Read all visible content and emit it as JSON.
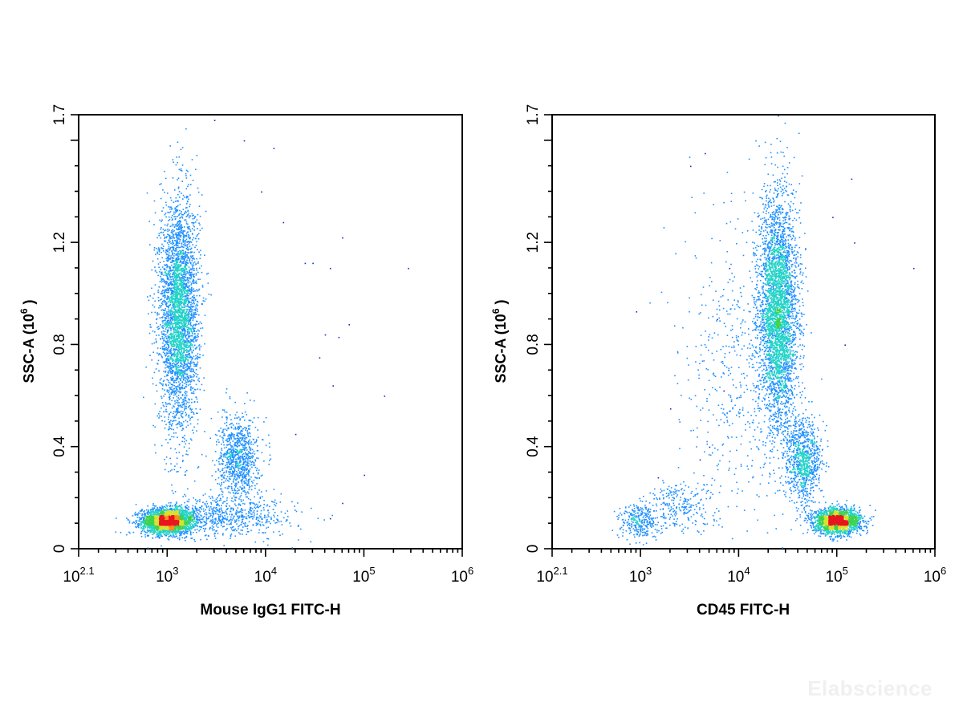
{
  "chart_data": [
    {
      "type": "scatter",
      "subtype": "flow-cytometry-density-dot-plot",
      "xlabel": "Mouse IgG1 FITC-H",
      "ylabel": "SSC-A (10^6 )",
      "ylabel_base": "SSC-A (10",
      "ylabel_exp": "6",
      "ylabel_close": " )",
      "x_scale": "log",
      "xlim": [
        125.9,
        1000000
      ],
      "ylim": [
        0,
        1.7
      ],
      "x_ticks": [
        {
          "value": 125.9,
          "base": "10",
          "exp": "2.1"
        },
        {
          "value": 1000,
          "base": "10",
          "exp": "3"
        },
        {
          "value": 10000,
          "base": "10",
          "exp": "4"
        },
        {
          "value": 100000,
          "base": "10",
          "exp": "5"
        },
        {
          "value": 1000000,
          "base": "10",
          "exp": "6"
        }
      ],
      "y_ticks": [
        {
          "value": 0,
          "label": "0"
        },
        {
          "value": 0.4,
          "label": "0.4"
        },
        {
          "value": 0.8,
          "label": "0.8"
        },
        {
          "value": 1.2,
          "label": "1.2"
        },
        {
          "value": 1.7,
          "label": "1.7"
        }
      ],
      "grid": false,
      "populations": [
        {
          "x_center": 1000,
          "y_center": 0.11,
          "x_spread_log": 0.13,
          "y_spread": 0.025,
          "count": 2600,
          "density": "high"
        },
        {
          "x_center": 1300,
          "y_center": 0.92,
          "x_spread_log": 0.1,
          "y_spread": 0.22,
          "count": 3600,
          "density": "high"
        },
        {
          "x_center": 5200,
          "y_center": 0.36,
          "x_spread_log": 0.1,
          "y_spread": 0.08,
          "count": 900,
          "density": "medium"
        },
        {
          "x_center": 4000,
          "y_center": 0.13,
          "x_spread_log": 0.35,
          "y_spread": 0.04,
          "count": 700,
          "density": "low"
        }
      ],
      "scattered_points": [
        [
          12000,
          1.57
        ],
        [
          20000,
          0.45
        ],
        [
          30000,
          1.12
        ],
        [
          40000,
          0.84
        ],
        [
          45000,
          1.1
        ],
        [
          48000,
          0.64
        ],
        [
          55000,
          0.83
        ],
        [
          60000,
          1.22
        ],
        [
          70000,
          0.88
        ],
        [
          160000,
          0.6
        ],
        [
          280000,
          1.1
        ],
        [
          15000,
          1.28
        ],
        [
          25000,
          1.12
        ],
        [
          9000,
          1.4
        ],
        [
          35000,
          0.75
        ],
        [
          100000,
          0.29
        ],
        [
          3000,
          1.68
        ],
        [
          6000,
          1.6
        ],
        [
          60000,
          0.18
        ],
        [
          45000,
          0.12
        ]
      ]
    },
    {
      "type": "scatter",
      "subtype": "flow-cytometry-density-dot-plot",
      "xlabel": "CD45 FITC-H",
      "ylabel": "SSC-A (10^6 )",
      "ylabel_base": "SSC-A (10",
      "ylabel_exp": "6",
      "ylabel_close": " )",
      "x_scale": "log",
      "xlim": [
        125.9,
        1000000
      ],
      "ylim": [
        0,
        1.7
      ],
      "x_ticks": [
        {
          "value": 125.9,
          "base": "10",
          "exp": "2.1"
        },
        {
          "value": 1000,
          "base": "10",
          "exp": "3"
        },
        {
          "value": 10000,
          "base": "10",
          "exp": "4"
        },
        {
          "value": 100000,
          "base": "10",
          "exp": "5"
        },
        {
          "value": 1000000,
          "base": "10",
          "exp": "6"
        }
      ],
      "y_ticks": [
        {
          "value": 0,
          "label": "0"
        },
        {
          "value": 0.4,
          "label": "0.4"
        },
        {
          "value": 0.8,
          "label": "0.8"
        },
        {
          "value": 1.2,
          "label": "1.2"
        },
        {
          "value": 1.7,
          "label": "1.7"
        }
      ],
      "grid": false,
      "populations": [
        {
          "x_center": 100000,
          "y_center": 0.11,
          "x_spread_log": 0.12,
          "y_spread": 0.025,
          "count": 2000,
          "density": "high"
        },
        {
          "x_center": 25000,
          "y_center": 0.92,
          "x_spread_log": 0.1,
          "y_spread": 0.23,
          "count": 3800,
          "density": "high"
        },
        {
          "x_center": 45000,
          "y_center": 0.35,
          "x_spread_log": 0.09,
          "y_spread": 0.08,
          "count": 900,
          "density": "medium"
        },
        {
          "x_center": 950,
          "y_center": 0.11,
          "x_spread_log": 0.1,
          "y_spread": 0.035,
          "count": 300,
          "density": "low"
        },
        {
          "x_center": 2500,
          "y_center": 0.17,
          "x_spread_log": 0.17,
          "y_spread": 0.05,
          "count": 250,
          "density": "low"
        },
        {
          "x_center": 10000,
          "y_center": 0.7,
          "x_spread_log": 0.3,
          "y_spread": 0.3,
          "count": 500,
          "density": "low"
        }
      ],
      "scattered_points": [
        [
          900,
          0.93
        ],
        [
          3200,
          1.5
        ],
        [
          4500,
          1.55
        ],
        [
          5000,
          0.4
        ],
        [
          7000,
          0.62
        ],
        [
          140000,
          1.45
        ],
        [
          600000,
          1.1
        ],
        [
          8000,
          1.1
        ],
        [
          6000,
          0.9
        ],
        [
          120000,
          0.8
        ],
        [
          150000,
          1.2
        ],
        [
          90000,
          1.3
        ],
        [
          4000,
          0.35
        ],
        [
          2000,
          0.55
        ],
        [
          1500,
          0.28
        ]
      ]
    }
  ],
  "watermark": "Elabscience"
}
